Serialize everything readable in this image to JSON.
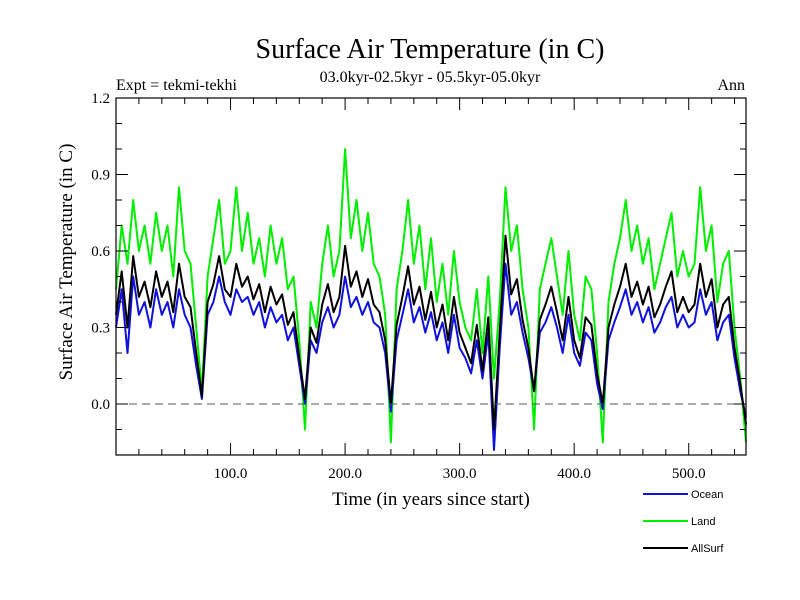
{
  "chart_data": {
    "type": "line",
    "title": "Surface Air Temperature (in C)",
    "subtitle": "03.0kyr-02.5kyr - 05.5kyr-05.0kyr",
    "expt_label": "Expt = tekmi-tekhi",
    "season_label": "Ann",
    "xlabel": "Time (in years since start)",
    "ylabel": "Surface Air Temperature (in C)",
    "xlim": [
      0,
      550
    ],
    "ylim": [
      -0.2,
      1.2
    ],
    "x_ticks": [
      100,
      200,
      300,
      400,
      500
    ],
    "x_tick_labels": [
      "100.0",
      "200.0",
      "300.0",
      "400.0",
      "500.0"
    ],
    "y_ticks": [
      0.0,
      0.3,
      0.6,
      0.9,
      1.2
    ],
    "y_tick_labels": [
      "0.0",
      "0.3",
      "0.6",
      "0.9",
      "1.2"
    ],
    "zero_line": 0.0,
    "series": [
      {
        "name": "Land",
        "color": "#00ee00",
        "x": [
          0,
          5,
          10,
          15,
          20,
          25,
          30,
          35,
          40,
          45,
          50,
          55,
          60,
          65,
          70,
          75,
          80,
          85,
          90,
          95,
          100,
          105,
          110,
          115,
          120,
          125,
          130,
          135,
          140,
          145,
          150,
          155,
          160,
          165,
          170,
          175,
          180,
          185,
          190,
          195,
          200,
          205,
          210,
          215,
          220,
          225,
          230,
          235,
          240,
          245,
          250,
          255,
          260,
          265,
          270,
          275,
          280,
          285,
          290,
          295,
          300,
          305,
          310,
          315,
          320,
          325,
          330,
          335,
          340,
          345,
          350,
          355,
          360,
          365,
          370,
          375,
          380,
          385,
          390,
          395,
          400,
          405,
          410,
          415,
          420,
          425,
          430,
          435,
          440,
          445,
          450,
          455,
          460,
          465,
          470,
          475,
          480,
          485,
          490,
          495,
          500,
          505,
          510,
          515,
          520,
          525,
          530,
          535,
          540,
          545,
          550
        ],
        "values": [
          0.45,
          0.7,
          0.55,
          0.8,
          0.6,
          0.7,
          0.55,
          0.75,
          0.6,
          0.7,
          0.5,
          0.85,
          0.6,
          0.55,
          0.3,
          0.05,
          0.5,
          0.65,
          0.8,
          0.55,
          0.6,
          0.85,
          0.6,
          0.75,
          0.55,
          0.65,
          0.5,
          0.7,
          0.55,
          0.65,
          0.45,
          0.5,
          0.25,
          -0.1,
          0.4,
          0.3,
          0.55,
          0.7,
          0.5,
          0.6,
          1.0,
          0.65,
          0.8,
          0.6,
          0.75,
          0.55,
          0.5,
          0.35,
          -0.15,
          0.45,
          0.6,
          0.8,
          0.55,
          0.7,
          0.45,
          0.65,
          0.4,
          0.55,
          0.35,
          0.6,
          0.4,
          0.3,
          0.25,
          0.45,
          0.2,
          0.5,
          0.1,
          0.4,
          0.85,
          0.6,
          0.7,
          0.45,
          0.3,
          -0.1,
          0.45,
          0.55,
          0.65,
          0.5,
          0.35,
          0.6,
          0.35,
          0.25,
          0.5,
          0.45,
          0.2,
          -0.15,
          0.4,
          0.55,
          0.65,
          0.8,
          0.6,
          0.7,
          0.55,
          0.65,
          0.45,
          0.55,
          0.65,
          0.75,
          0.5,
          0.6,
          0.5,
          0.55,
          0.85,
          0.6,
          0.7,
          0.4,
          0.55,
          0.6,
          0.3,
          0.1,
          -0.15
        ]
      },
      {
        "name": "Ocean",
        "color": "#1010dd",
        "x": [
          0,
          5,
          10,
          15,
          20,
          25,
          30,
          35,
          40,
          45,
          50,
          55,
          60,
          65,
          70,
          75,
          80,
          85,
          90,
          95,
          100,
          105,
          110,
          115,
          120,
          125,
          130,
          135,
          140,
          145,
          150,
          155,
          160,
          165,
          170,
          175,
          180,
          185,
          190,
          195,
          200,
          205,
          210,
          215,
          220,
          225,
          230,
          235,
          240,
          245,
          250,
          255,
          260,
          265,
          270,
          275,
          280,
          285,
          290,
          295,
          300,
          305,
          310,
          315,
          320,
          325,
          330,
          335,
          340,
          345,
          350,
          355,
          360,
          365,
          370,
          375,
          380,
          385,
          390,
          395,
          400,
          405,
          410,
          415,
          420,
          425,
          430,
          435,
          440,
          445,
          450,
          455,
          460,
          465,
          470,
          475,
          480,
          485,
          490,
          495,
          500,
          505,
          510,
          515,
          520,
          525,
          530,
          535,
          540,
          545,
          550
        ],
        "values": [
          0.3,
          0.45,
          0.2,
          0.5,
          0.35,
          0.4,
          0.3,
          0.45,
          0.35,
          0.4,
          0.3,
          0.45,
          0.35,
          0.3,
          0.15,
          0.02,
          0.35,
          0.4,
          0.5,
          0.4,
          0.35,
          0.45,
          0.4,
          0.42,
          0.35,
          0.4,
          0.3,
          0.38,
          0.32,
          0.35,
          0.25,
          0.3,
          0.15,
          0.0,
          0.25,
          0.2,
          0.32,
          0.38,
          0.3,
          0.35,
          0.5,
          0.38,
          0.42,
          0.35,
          0.4,
          0.32,
          0.3,
          0.2,
          -0.03,
          0.25,
          0.35,
          0.45,
          0.32,
          0.38,
          0.28,
          0.36,
          0.25,
          0.32,
          0.2,
          0.35,
          0.22,
          0.18,
          0.12,
          0.25,
          0.1,
          0.28,
          -0.18,
          0.22,
          0.55,
          0.35,
          0.4,
          0.28,
          0.18,
          0.05,
          0.28,
          0.32,
          0.38,
          0.3,
          0.2,
          0.35,
          0.2,
          0.15,
          0.28,
          0.25,
          0.08,
          -0.02,
          0.25,
          0.32,
          0.38,
          0.45,
          0.35,
          0.4,
          0.32,
          0.38,
          0.28,
          0.32,
          0.38,
          0.42,
          0.3,
          0.35,
          0.3,
          0.32,
          0.45,
          0.35,
          0.4,
          0.25,
          0.32,
          0.35,
          0.18,
          0.05,
          -0.05
        ]
      },
      {
        "name": "AllSurf",
        "color": "#000000",
        "x": [
          0,
          5,
          10,
          15,
          20,
          25,
          30,
          35,
          40,
          45,
          50,
          55,
          60,
          65,
          70,
          75,
          80,
          85,
          90,
          95,
          100,
          105,
          110,
          115,
          120,
          125,
          130,
          135,
          140,
          145,
          150,
          155,
          160,
          165,
          170,
          175,
          180,
          185,
          190,
          195,
          200,
          205,
          210,
          215,
          220,
          225,
          230,
          235,
          240,
          245,
          250,
          255,
          260,
          265,
          270,
          275,
          280,
          285,
          290,
          295,
          300,
          305,
          310,
          315,
          320,
          325,
          330,
          335,
          340,
          345,
          350,
          355,
          360,
          365,
          370,
          375,
          380,
          385,
          390,
          395,
          400,
          405,
          410,
          415,
          420,
          425,
          430,
          435,
          440,
          445,
          450,
          455,
          460,
          465,
          470,
          475,
          480,
          485,
          490,
          495,
          500,
          505,
          510,
          515,
          520,
          525,
          530,
          535,
          540,
          545,
          550
        ],
        "values": [
          0.35,
          0.52,
          0.3,
          0.58,
          0.42,
          0.48,
          0.38,
          0.52,
          0.42,
          0.48,
          0.36,
          0.55,
          0.42,
          0.38,
          0.2,
          0.03,
          0.4,
          0.47,
          0.58,
          0.45,
          0.42,
          0.55,
          0.46,
          0.5,
          0.41,
          0.47,
          0.36,
          0.46,
          0.39,
          0.43,
          0.31,
          0.36,
          0.18,
          0.02,
          0.3,
          0.24,
          0.39,
          0.47,
          0.36,
          0.42,
          0.62,
          0.46,
          0.52,
          0.42,
          0.49,
          0.39,
          0.36,
          0.25,
          0.0,
          0.31,
          0.42,
          0.54,
          0.39,
          0.46,
          0.33,
          0.44,
          0.3,
          0.39,
          0.25,
          0.42,
          0.28,
          0.22,
          0.16,
          0.31,
          0.13,
          0.34,
          -0.1,
          0.28,
          0.66,
          0.43,
          0.49,
          0.33,
          0.22,
          0.05,
          0.33,
          0.39,
          0.46,
          0.36,
          0.25,
          0.42,
          0.25,
          0.18,
          0.34,
          0.31,
          0.12,
          0.0,
          0.3,
          0.39,
          0.46,
          0.55,
          0.42,
          0.48,
          0.39,
          0.46,
          0.34,
          0.39,
          0.46,
          0.52,
          0.36,
          0.42,
          0.36,
          0.39,
          0.55,
          0.42,
          0.49,
          0.3,
          0.39,
          0.42,
          0.22,
          0.08,
          -0.08
        ]
      }
    ],
    "legend": [
      "Ocean",
      "Land",
      "AllSurf"
    ],
    "legend_position": "bottom-right"
  }
}
